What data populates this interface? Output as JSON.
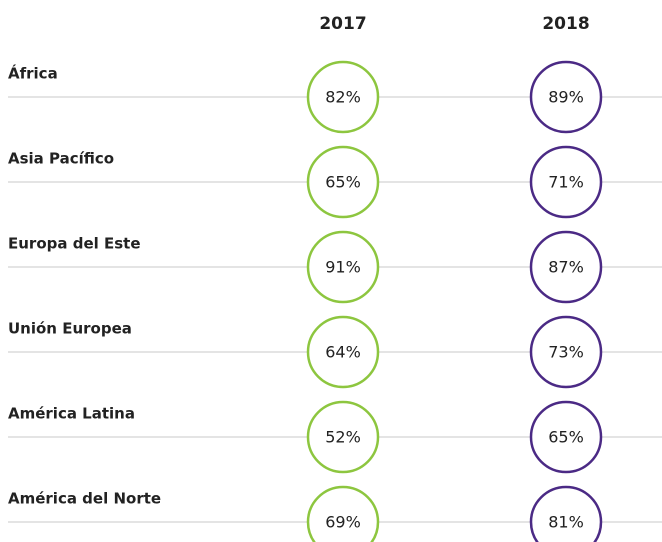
{
  "table": {
    "columns": [
      "2017",
      "2018"
    ],
    "rows": [
      {
        "label": "África",
        "values": [
          "82%",
          "89%"
        ]
      },
      {
        "label": "Asia Pacífico",
        "values": [
          "65%",
          "71%"
        ]
      },
      {
        "label": "Europa del Este",
        "values": [
          "91%",
          "87%"
        ]
      },
      {
        "label": "Unión Europea",
        "values": [
          "64%",
          "73%"
        ]
      },
      {
        "label": "América Latina",
        "values": [
          "52%",
          "65%"
        ]
      },
      {
        "label": "América del Norte",
        "values": [
          "69%",
          "81%"
        ]
      }
    ]
  }
}
